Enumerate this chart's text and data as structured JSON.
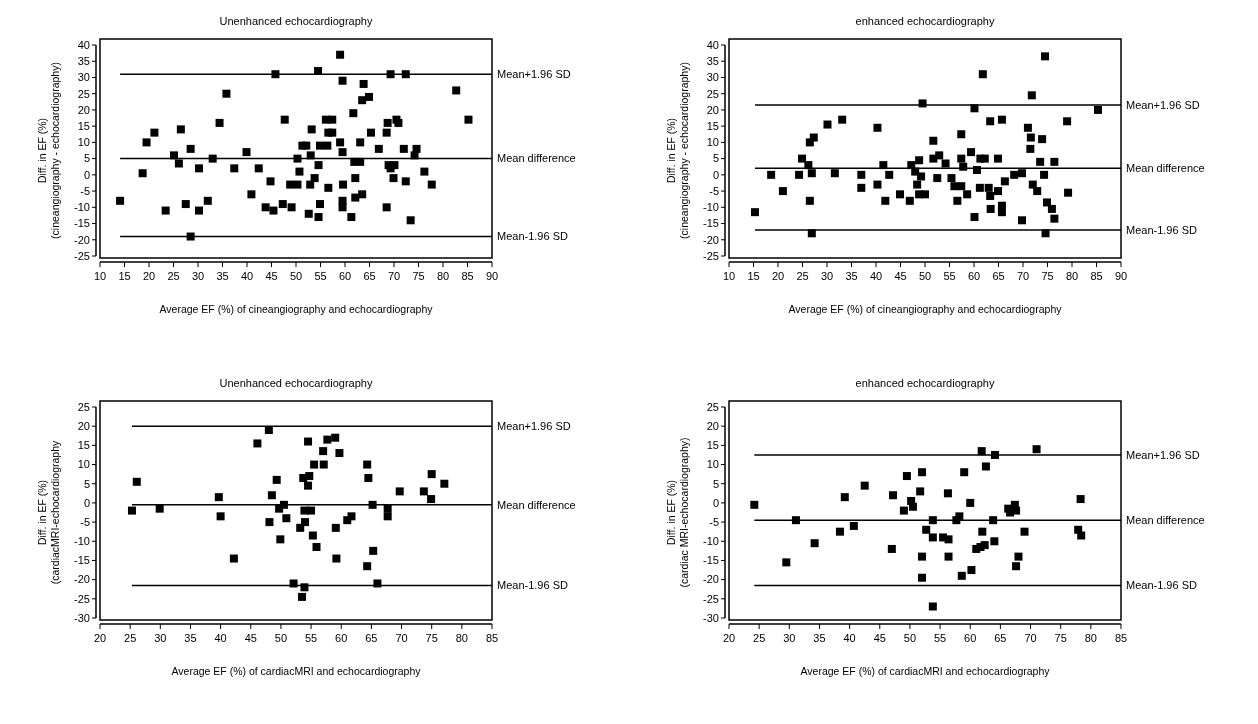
{
  "chart_data": [
    {
      "type": "scatter",
      "title": "Unenhanced echocardiography",
      "xlabel": "Average EF (%) of  cineangiography and echocardiography",
      "ylabel": "Diff. in EF (%)\n(cineangiography - echocardiography)",
      "marker": "square",
      "xlim": [
        10,
        90
      ],
      "ylim": [
        -25,
        40
      ],
      "xticks": [
        10,
        15,
        20,
        25,
        30,
        35,
        40,
        45,
        50,
        55,
        60,
        65,
        70,
        75,
        80,
        85,
        90
      ],
      "yticks": [
        -25,
        -20,
        -15,
        -10,
        -5,
        0,
        5,
        10,
        15,
        20,
        25,
        30,
        35,
        40
      ],
      "ref_lines": [
        {
          "axis": "y",
          "value": 31,
          "label": "Mean+1.96 SD",
          "color": "#000000"
        },
        {
          "axis": "y",
          "value": 5,
          "label": "Mean difference",
          "color": "#000000"
        },
        {
          "axis": "y",
          "value": -19,
          "label": "Mean-1.96 SD",
          "color": "#000000"
        }
      ],
      "series": [
        {
          "color": "#000000",
          "x": [
            14.1,
            18.7,
            19.5,
            21.1,
            23.4,
            25.1,
            26.1,
            26.5,
            27.5,
            28.5,
            28.5,
            30.2,
            30.2,
            32,
            33,
            34.4,
            35.8,
            37.4,
            39.9,
            40.9,
            42.4,
            43.8,
            44.8,
            45.8,
            45.4,
            47.7,
            47.3,
            48.8,
            49.1,
            50.3,
            50.7,
            50.3,
            51.3,
            52.1,
            53.2,
            53,
            52.9,
            52.6,
            53.8,
            54.5,
            54.6,
            54.9,
            54.9,
            54.6,
            56.4,
            56.1,
            56.6,
            57.4,
            57.4,
            56.6,
            59,
            59.5,
            59,
            59.5,
            59.6,
            59.5,
            59.5,
            61.3,
            61.7,
            61.9,
            62.1,
            62.1,
            63.1,
            63.1,
            63.5,
            63.8,
            63.5,
            64.9,
            65.3,
            66.9,
            68.5,
            68.7,
            68.5,
            69.3,
            68.9,
            69.3,
            69.9,
            70.1,
            70.5,
            70.9,
            72.4,
            72,
            72.4,
            74.6,
            74.2,
            73.4,
            76.2,
            77.7,
            82.7,
            85.2
          ],
          "values": [
            -8,
            0.5,
            10,
            13,
            -11,
            6,
            3.5,
            14,
            -9,
            8,
            -19,
            -11,
            2,
            -8,
            5,
            16,
            25,
            2,
            7,
            -6,
            2,
            -10,
            -2,
            31,
            -11,
            17,
            -9,
            -3,
            -10,
            -3,
            1,
            5,
            9,
            9,
            14,
            6,
            -3,
            -12,
            -1,
            32,
            3,
            9,
            -9,
            -13,
            9,
            17,
            13,
            17,
            13,
            -4,
            37,
            29,
            10,
            7,
            -3,
            -8,
            -10,
            -13,
            19,
            4,
            -1,
            -7,
            4,
            10,
            -6,
            28,
            23,
            24,
            13,
            8,
            -10,
            16,
            13,
            31,
            3,
            2,
            -1,
            3,
            17,
            16,
            31,
            8,
            -2,
            8,
            6,
            -14,
            1,
            -3,
            26,
            17
          ]
        }
      ]
    },
    {
      "type": "scatter",
      "title": "enhanced echocardiography",
      "xlabel": "Average EF (%) of  cineangiography and echocardiography",
      "ylabel": "Diff. in EF (%)\n(cineangiography - echocardiography)",
      "marker": "square",
      "xlim": [
        10,
        90
      ],
      "ylim": [
        -25,
        40
      ],
      "xticks": [
        10,
        15,
        20,
        25,
        30,
        35,
        40,
        45,
        50,
        55,
        60,
        65,
        70,
        75,
        80,
        85,
        90
      ],
      "yticks": [
        -25,
        -20,
        -15,
        -10,
        -5,
        0,
        5,
        10,
        15,
        20,
        25,
        30,
        35,
        40
      ],
      "ref_lines": [
        {
          "axis": "y",
          "value": 21.5,
          "label": "Mean+1.96 SD",
          "color": "#000000"
        },
        {
          "axis": "y",
          "value": 2,
          "label": "Mean difference",
          "color": "#000000"
        },
        {
          "axis": "y",
          "value": -17,
          "label": "Mean-1.96 SD",
          "color": "#000000"
        }
      ],
      "series": [
        {
          "color": "#000000",
          "x": [
            15.3,
            18.6,
            21,
            24.3,
            24.9,
            26.2,
            26.5,
            26.5,
            27.3,
            26.9,
            26.9,
            30.1,
            31.6,
            33.1,
            37,
            37,
            40.3,
            40.3,
            41.5,
            41.9,
            42.7,
            44.9,
            46.9,
            47.2,
            48,
            48.4,
            48.8,
            48.8,
            49.2,
            49.5,
            50,
            51.7,
            51.7,
            52.5,
            52.9,
            54.2,
            55.4,
            56,
            56.6,
            57.4,
            57.4,
            57.8,
            57.4,
            58.6,
            59.4,
            60.1,
            60.1,
            60.6,
            61.3,
            61.2,
            61.8,
            62.2,
            63,
            63.3,
            63.3,
            63.4,
            64.9,
            64.9,
            65.7,
            65.7,
            65.7,
            66.3,
            68.2,
            69.8,
            69.8,
            71,
            71.5,
            71.6,
            71.8,
            72,
            72.9,
            73.5,
            73.9,
            74.3,
            74.5,
            74.6,
            74.9,
            75.9,
            76.4,
            76.4,
            79,
            79.2,
            85.3
          ],
          "values": [
            -11.5,
            0,
            -5,
            0,
            5,
            3,
            -8,
            10,
            11.5,
            0.5,
            -18,
            15.5,
            0.5,
            17,
            0,
            -4,
            14.5,
            -3,
            3,
            -8,
            0,
            -6,
            -8,
            3,
            1,
            -3,
            4.5,
            -6,
            -0.5,
            22,
            -6,
            10.5,
            5,
            -1,
            6,
            3.5,
            -1,
            -3.5,
            -8,
            12.5,
            5,
            2.5,
            -3.5,
            -6,
            7,
            20.5,
            -13,
            1.5,
            5,
            -4,
            31,
            5,
            -4,
            16.5,
            -6.5,
            -10.5,
            5,
            -5,
            17,
            -9.5,
            -11.5,
            -2,
            0,
            0.5,
            -14,
            14.5,
            8,
            11.5,
            24.5,
            -3,
            -5,
            4,
            11,
            0,
            36.5,
            -18,
            -8.5,
            -10.5,
            4,
            -13.5,
            16.5,
            -5.5,
            20
          ]
        }
      ]
    },
    {
      "type": "scatter",
      "title": "Unenhanced echocardiography",
      "xlabel": "Average EF (%) of cardiacMRI and echocardiography",
      "ylabel": "Diff. in EF (%)\n(cardiacMRI-echocardiography",
      "marker": "square",
      "xlim": [
        20,
        85
      ],
      "ylim": [
        -30,
        25
      ],
      "xticks": [
        20,
        25,
        30,
        35,
        40,
        45,
        50,
        55,
        60,
        65,
        70,
        75,
        80,
        85
      ],
      "yticks": [
        -30,
        -25,
        -20,
        -15,
        -10,
        -5,
        0,
        5,
        10,
        15,
        20,
        25
      ],
      "ref_lines": [
        {
          "axis": "y",
          "value": 20,
          "label": "Mean+1.96 SD",
          "color": "#000000"
        },
        {
          "axis": "y",
          "value": -0.5,
          "label": "Mean difference",
          "color": "#000000"
        },
        {
          "axis": "y",
          "value": -21.5,
          "label": "Mean-1.96 SD",
          "color": "#000000"
        }
      ],
      "series": [
        {
          "color": "#000000",
          "x": [
            25.3,
            26.1,
            29.9,
            39.7,
            40,
            42.2,
            46.1,
            48,
            48.1,
            48.5,
            49.3,
            49.7,
            49.9,
            50.5,
            50.9,
            52.1,
            53.2,
            53.5,
            53.7,
            53.9,
            53.9,
            54,
            54.5,
            54.5,
            54.7,
            55,
            55.3,
            55.5,
            55.9,
            57,
            57.1,
            57.7,
            59,
            59.1,
            59.2,
            59.7,
            61,
            61.7,
            64.3,
            64.5,
            64.3,
            65.2,
            65.3,
            66,
            67.7,
            67.7,
            69.7,
            73.7,
            74.9,
            75,
            77.1
          ],
          "values": [
            -2,
            5.5,
            -1.5,
            1.5,
            -3.5,
            -14.5,
            15.5,
            19,
            -5,
            2,
            6,
            -1.5,
            -9.5,
            -0.5,
            -4,
            -21,
            -6.5,
            -24.5,
            6.5,
            -2,
            -22,
            -5,
            16,
            4.5,
            7,
            -2,
            -8.5,
            10,
            -11.5,
            13.5,
            10,
            16.5,
            17,
            -6.5,
            -14.5,
            13,
            -4.5,
            -3.5,
            10,
            6.5,
            -16.5,
            -0.5,
            -12.5,
            -21,
            -1.5,
            -3.5,
            3,
            3,
            1,
            7.5,
            5
          ]
        }
      ]
    },
    {
      "type": "scatter",
      "title": "enhanced echocardiography",
      "xlabel": "Average EF (%) of cardiacMRI and echocardiography",
      "ylabel": "Diff. in EF (%)\n(cardiac MRI-echocardiography)",
      "marker": "square",
      "xlim": [
        20,
        85
      ],
      "ylim": [
        -30,
        25
      ],
      "xticks": [
        20,
        25,
        30,
        35,
        40,
        45,
        50,
        55,
        60,
        65,
        70,
        75,
        80,
        85
      ],
      "yticks": [
        -30,
        -25,
        -20,
        -15,
        -10,
        -5,
        0,
        5,
        10,
        15,
        20,
        25
      ],
      "ref_lines": [
        {
          "axis": "y",
          "value": 12.5,
          "label": "Mean+1.96 SD",
          "color": "#000000"
        },
        {
          "axis": "y",
          "value": -4.5,
          "label": "Mean difference",
          "color": "#000000"
        },
        {
          "axis": "y",
          "value": -21.5,
          "label": "Mean-1.96 SD",
          "color": "#000000"
        }
      ],
      "series": [
        {
          "color": "#000000",
          "x": [
            24.2,
            29.5,
            31.1,
            34.2,
            38.4,
            39.2,
            40.7,
            42.5,
            47,
            47.2,
            49,
            49.5,
            50.2,
            50.5,
            51.7,
            52,
            52,
            52,
            52.7,
            53.8,
            53.8,
            53.8,
            55.5,
            56.3,
            56.4,
            56.4,
            57.7,
            58.2,
            58.6,
            59,
            60,
            60.2,
            61,
            61.7,
            61.9,
            62,
            62.4,
            62.6,
            63.8,
            64,
            64.1,
            66.3,
            66.6,
            67.4,
            67.6,
            67.6,
            68,
            69,
            71,
            77.9,
            78.3,
            78.4
          ],
          "values": [
            -0.5,
            -15.5,
            -4.5,
            -10.5,
            -7.5,
            1.5,
            -6,
            4.5,
            -12,
            2,
            -2,
            7,
            0.5,
            -1,
            3,
            8,
            -14,
            -19.5,
            -7,
            -4.5,
            -9,
            -27,
            -9,
            2.5,
            -9.5,
            -14,
            -4.5,
            -3.5,
            -19,
            8,
            0,
            -17.5,
            -12,
            -11.5,
            13.5,
            -7.5,
            -11,
            9.5,
            -4.5,
            -10,
            12.5,
            -1.5,
            -2.5,
            -0.5,
            -2,
            -16.5,
            -14,
            -7.5,
            14,
            -7,
            1,
            -8.5
          ]
        }
      ]
    }
  ]
}
